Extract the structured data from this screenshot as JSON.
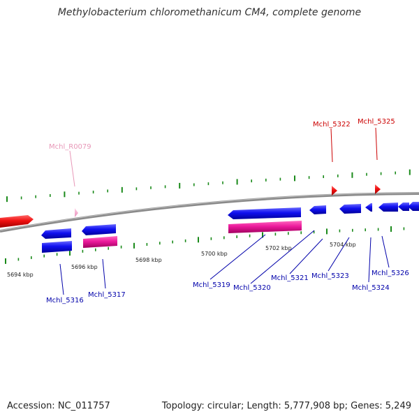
{
  "title": "Methylobacterium chloromethanicum CM4, complete genome",
  "footer": {
    "accession": "Accession: NC_011757",
    "summary": "Topology: circular; Length: 5,777,908 bp; Genes: 5,249"
  },
  "colors": {
    "backbone": "#8a8a8a",
    "forward_cds": "#ee0000",
    "reverse_cds": "#0000ee",
    "rrna_trna_pink": "#f0a0c8",
    "reverse_feature_magenta": "#e8189a",
    "tick_green": "#1a8a1a",
    "forward_label": "#cc0000",
    "reverse_label": "#0000aa",
    "rna_label": "#e898b8"
  },
  "axis": {
    "unit": "kbp",
    "ticks": [
      "5694 kbp",
      "5696 kbp",
      "5698 kbp",
      "5700 kbp",
      "5702 kbp",
      "5704 kbp"
    ]
  },
  "genes_forward": [
    {
      "label": "Mchl_R0079",
      "feature": "tRNA"
    },
    {
      "label": "Mchl_5322",
      "feature": "CDS"
    },
    {
      "label": "Mchl_5325",
      "feature": "CDS"
    }
  ],
  "genes_reverse": [
    {
      "label": "Mchl_5316"
    },
    {
      "label": "Mchl_5317"
    },
    {
      "label": "Mchl_5319"
    },
    {
      "label": "Mchl_5320"
    },
    {
      "label": "Mchl_5321"
    },
    {
      "label": "Mchl_5323"
    },
    {
      "label": "Mchl_5324"
    },
    {
      "label": "Mchl_5326"
    }
  ]
}
